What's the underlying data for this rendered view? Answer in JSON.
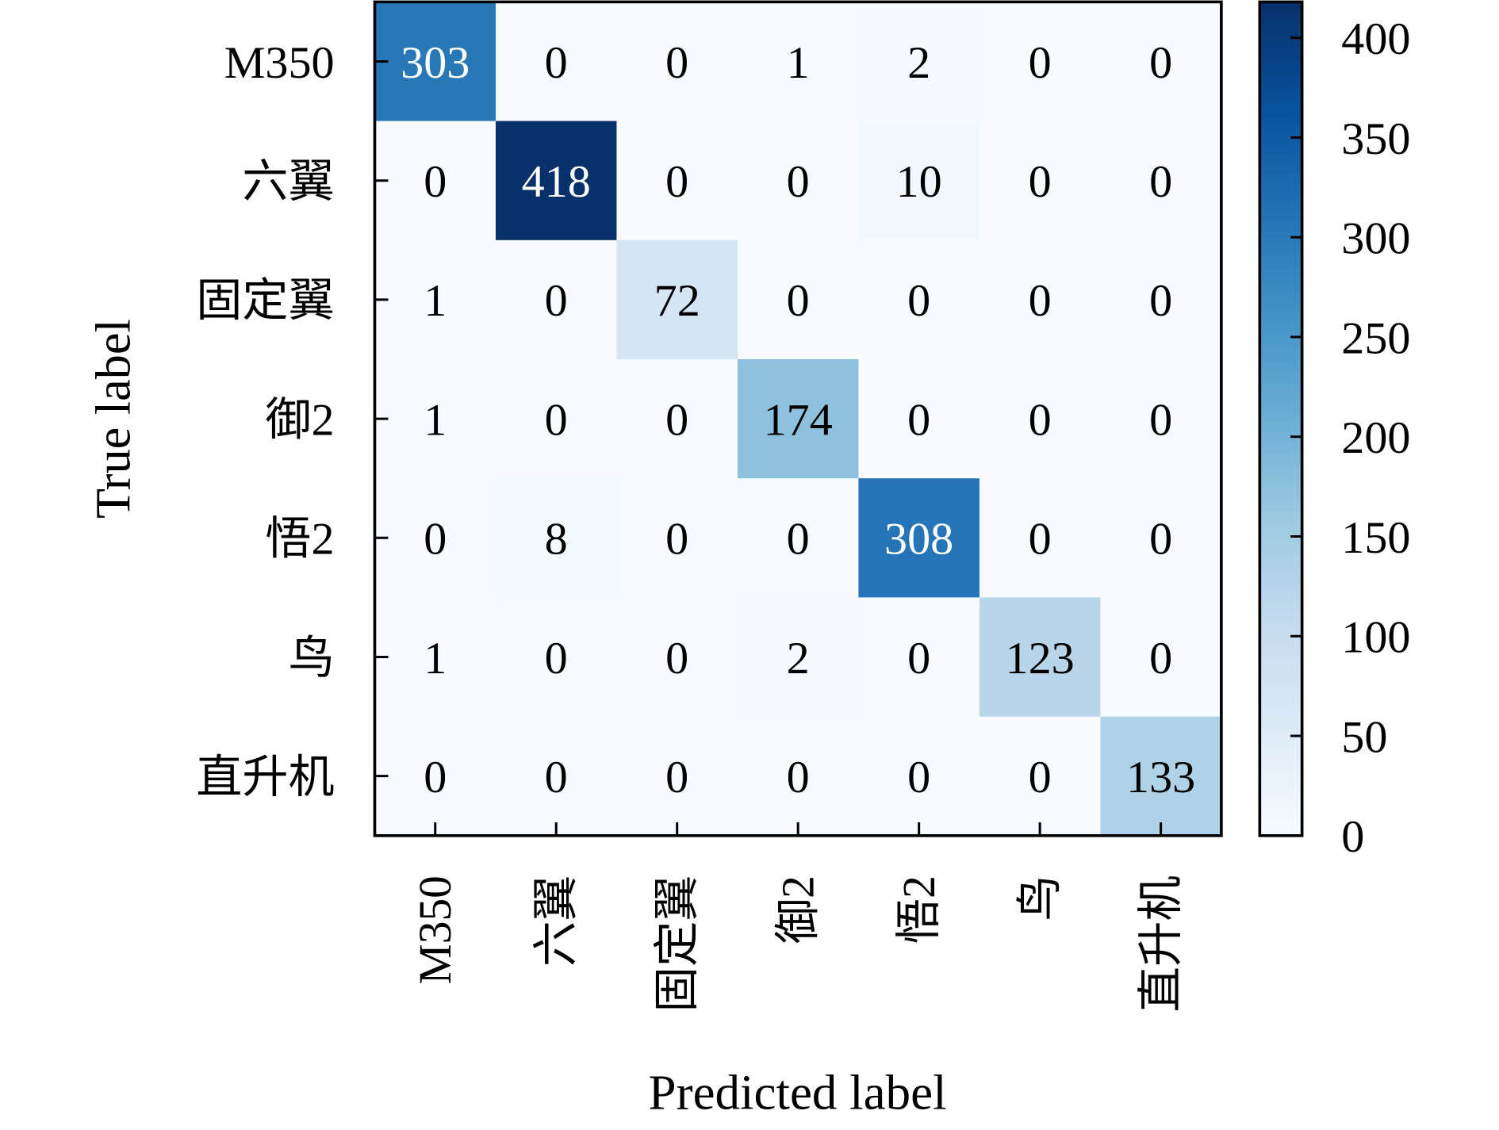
{
  "chart_data": {
    "type": "heatmap",
    "title": "",
    "xlabel": "Predicted label",
    "ylabel": "True label",
    "x_categories": [
      "M350",
      "六翼",
      "固定翼",
      "御2",
      "悟2",
      "鸟",
      "直升机"
    ],
    "y_categories": [
      "M350",
      "六翼",
      "固定翼",
      "御2",
      "悟2",
      "鸟",
      "直升机"
    ],
    "matrix": [
      [
        303,
        0,
        0,
        1,
        2,
        0,
        0
      ],
      [
        0,
        418,
        0,
        0,
        10,
        0,
        0
      ],
      [
        1,
        0,
        72,
        0,
        0,
        0,
        0
      ],
      [
        1,
        0,
        0,
        174,
        0,
        0,
        0
      ],
      [
        0,
        8,
        0,
        0,
        308,
        0,
        0
      ],
      [
        1,
        0,
        0,
        2,
        0,
        123,
        0
      ],
      [
        0,
        0,
        0,
        0,
        0,
        0,
        133
      ]
    ],
    "colormap": "Blues",
    "colormap_stops": [
      "#f7fbff",
      "#deebf7",
      "#c6dbef",
      "#9ecae1",
      "#6baed6",
      "#4292c6",
      "#2171b5",
      "#08519c",
      "#08306b"
    ],
    "color_range": [
      0,
      418
    ],
    "colorbar_ticks": [
      0,
      50,
      100,
      150,
      200,
      250,
      300,
      350,
      400
    ],
    "colorbar_tick_labels": [
      "0",
      "50",
      "100",
      "150",
      "200",
      "250",
      "300",
      "350",
      "400"
    ],
    "grid": false
  }
}
